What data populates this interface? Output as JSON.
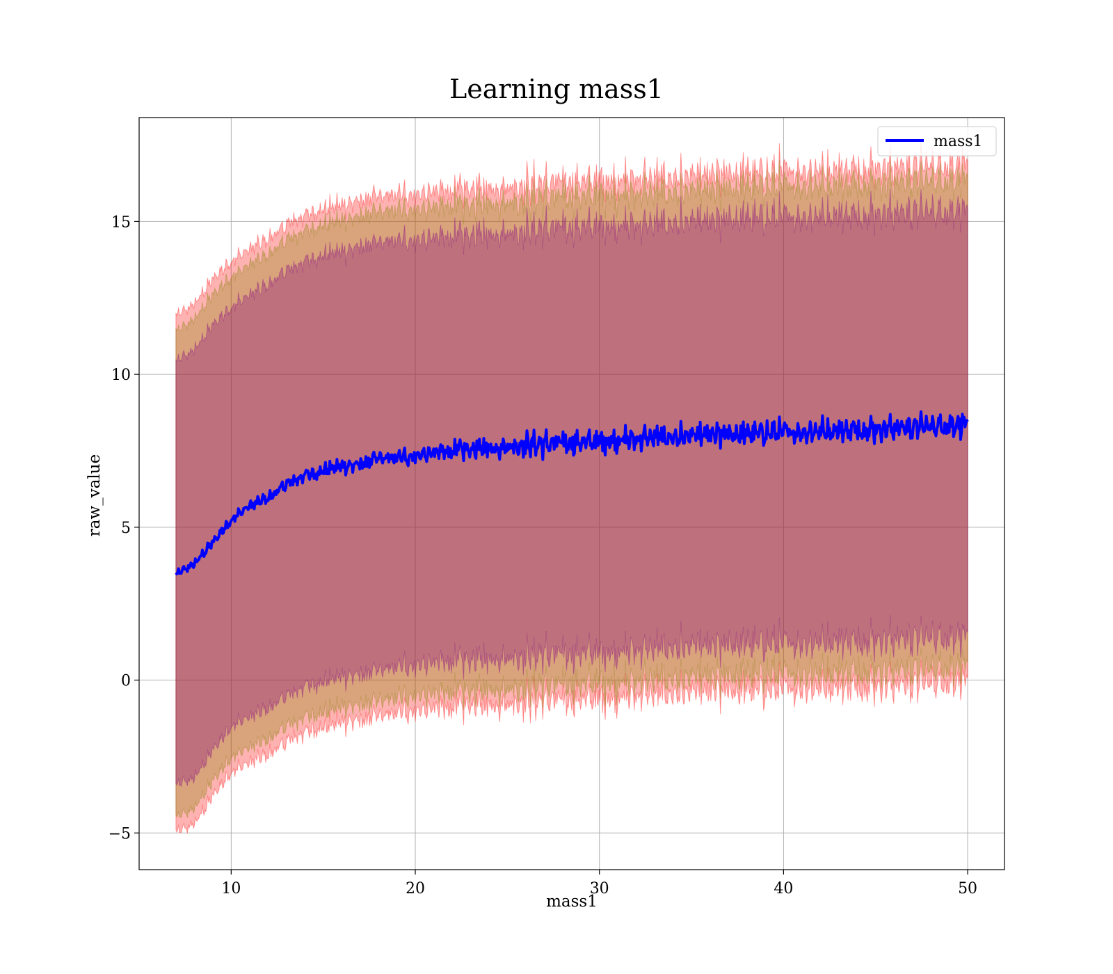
{
  "chart_data": {
    "type": "line",
    "title": "Learning mass1",
    "xlabel": "mass1",
    "ylabel": "raw_value",
    "xlim": [
      5,
      52
    ],
    "ylim": [
      -6.2,
      18.4
    ],
    "x_ticks": [
      10,
      20,
      30,
      40,
      50
    ],
    "y_ticks": [
      -5,
      0,
      5,
      10,
      15
    ],
    "grid": true,
    "legend": {
      "position": "top-right",
      "entries": [
        "mass1"
      ]
    },
    "x_range": [
      7,
      50
    ],
    "series": [
      {
        "name": "mass1",
        "role": "mean",
        "color": "#0000ff",
        "x": [
          7,
          8,
          9,
          10,
          11,
          12,
          13,
          14,
          15,
          16,
          17,
          18,
          19,
          20,
          22,
          24,
          26,
          28,
          30,
          32,
          34,
          36,
          38,
          40,
          42,
          44,
          46,
          48,
          50
        ],
        "y": [
          3.45,
          3.8,
          4.5,
          5.25,
          5.7,
          5.95,
          6.4,
          6.7,
          6.85,
          7.0,
          7.05,
          7.25,
          7.25,
          7.35,
          7.5,
          7.6,
          7.7,
          7.75,
          7.8,
          7.9,
          7.95,
          8.0,
          8.05,
          8.1,
          8.15,
          8.2,
          8.25,
          8.3,
          8.4
        ]
      }
    ],
    "bands": [
      {
        "color": "#ff0000",
        "opacity": 0.3,
        "x": [
          7,
          8,
          9,
          10,
          11,
          12,
          13,
          14,
          15,
          16,
          17,
          18,
          19,
          20,
          22,
          24,
          26,
          28,
          30,
          32,
          34,
          36,
          38,
          40,
          42,
          44,
          46,
          48,
          50
        ],
        "upper": [
          11.9,
          12.3,
          13.1,
          13.7,
          14.1,
          14.4,
          14.9,
          15.2,
          15.4,
          15.55,
          15.65,
          15.8,
          15.85,
          15.9,
          16.0,
          16.1,
          16.2,
          16.3,
          16.35,
          16.4,
          16.45,
          16.5,
          16.6,
          16.65,
          16.7,
          16.75,
          16.8,
          16.85,
          16.9
        ],
        "lower": [
          -5.0,
          -4.7,
          -3.8,
          -3.0,
          -2.7,
          -2.45,
          -2.0,
          -1.7,
          -1.55,
          -1.35,
          -1.35,
          -1.2,
          -1.1,
          -1.0,
          -0.9,
          -0.8,
          -0.7,
          -0.65,
          -0.6,
          -0.5,
          -0.45,
          -0.4,
          -0.35,
          -0.3,
          -0.25,
          -0.2,
          -0.15,
          -0.1,
          0.0
        ]
      },
      {
        "color": "#808000",
        "opacity": 0.3,
        "x": [
          7,
          8,
          9,
          10,
          11,
          12,
          13,
          14,
          15,
          16,
          17,
          18,
          19,
          20,
          22,
          24,
          26,
          28,
          30,
          32,
          34,
          36,
          38,
          40,
          42,
          44,
          46,
          48,
          50
        ],
        "upper": [
          11.4,
          11.8,
          12.6,
          13.2,
          13.6,
          13.9,
          14.4,
          14.7,
          14.9,
          15.05,
          15.15,
          15.3,
          15.35,
          15.4,
          15.5,
          15.6,
          15.7,
          15.8,
          15.85,
          15.9,
          15.95,
          16.0,
          16.1,
          16.15,
          16.2,
          16.25,
          16.3,
          16.35,
          16.4
        ],
        "lower": [
          -4.5,
          -4.2,
          -3.3,
          -2.5,
          -2.2,
          -1.95,
          -1.5,
          -1.2,
          -1.05,
          -0.85,
          -0.85,
          -0.7,
          -0.6,
          -0.5,
          -0.4,
          -0.3,
          -0.2,
          -0.15,
          -0.1,
          0.0,
          0.05,
          0.1,
          0.15,
          0.2,
          0.25,
          0.3,
          0.35,
          0.4,
          0.5
        ]
      },
      {
        "color": "#800080",
        "opacity": 0.3,
        "x": [
          7,
          8,
          9,
          10,
          11,
          12,
          13,
          14,
          15,
          16,
          17,
          18,
          19,
          20,
          22,
          24,
          26,
          28,
          30,
          32,
          34,
          36,
          38,
          40,
          42,
          44,
          46,
          48,
          50
        ],
        "upper": [
          10.4,
          10.8,
          11.6,
          12.2,
          12.6,
          12.9,
          13.4,
          13.7,
          13.9,
          14.05,
          14.15,
          14.3,
          14.35,
          14.4,
          14.5,
          14.6,
          14.7,
          14.8,
          14.85,
          14.9,
          14.95,
          15.0,
          15.1,
          15.15,
          15.2,
          15.25,
          15.3,
          15.35,
          15.4
        ],
        "lower": [
          -3.45,
          -3.2,
          -2.3,
          -1.5,
          -1.2,
          -0.95,
          -0.5,
          -0.2,
          -0.05,
          0.15,
          0.15,
          0.3,
          0.4,
          0.5,
          0.6,
          0.7,
          0.8,
          0.85,
          0.9,
          1.0,
          1.05,
          1.1,
          1.15,
          1.2,
          1.25,
          1.3,
          1.35,
          1.4,
          1.5
        ]
      }
    ]
  }
}
